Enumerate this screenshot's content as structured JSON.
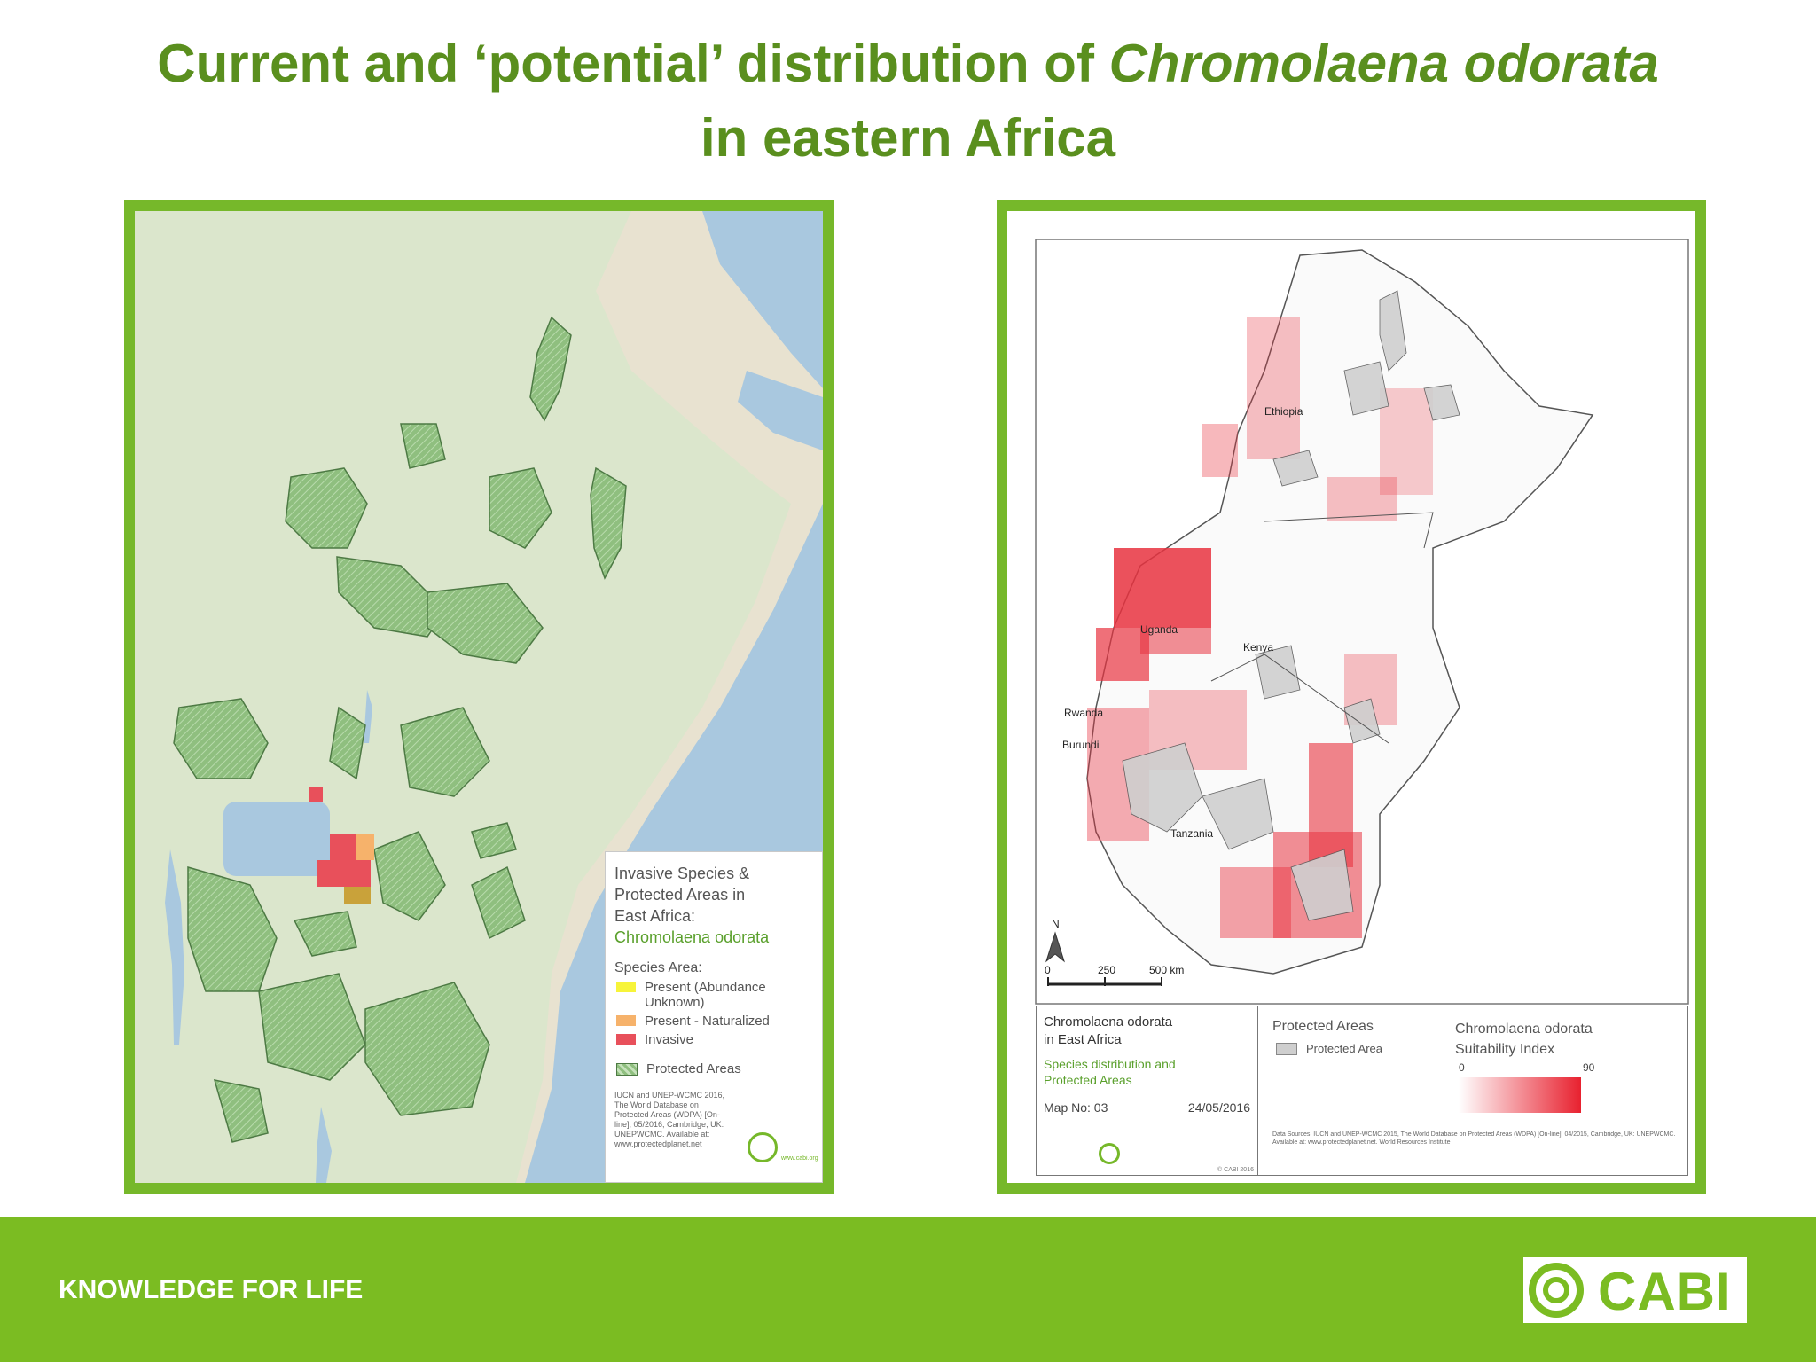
{
  "header": {
    "title_prefix": "Current and ‘potential’ distribution of ",
    "title_species": "Chromolaena odorata",
    "title_line2": "in eastern Africa"
  },
  "left_map": {
    "legend": {
      "title_line1": "Invasive Species &",
      "title_line2": "Protected Areas in",
      "title_line3": "East Africa:",
      "species": "Chromolaena odorata",
      "species_area": "Species Area:",
      "items": [
        {
          "label": "Present (Abundance Unknown)",
          "color": "#f7f43a"
        },
        {
          "label": "Present - Naturalized",
          "color": "#f6b26b"
        },
        {
          "label": "Invasive",
          "color": "#e8505b"
        }
      ],
      "protected_areas": "Protected Areas",
      "source": "IUCN and UNEP-WCMC 2016, The World Database on Protected Areas (WDPA) [On-line], 05/2016, Cambridge, UK: UNEPWCMC. Available at: www.protectedplanet.net",
      "logo_url_text": "www.cabi.org"
    }
  },
  "right_map": {
    "labels": {
      "ethiopia": "Ethiopia",
      "uganda": "Uganda",
      "kenya": "Kenya",
      "rwanda": "Rwanda",
      "burundi": "Burundi",
      "tanzania": "Tanzania",
      "north": "N"
    },
    "scale": {
      "zero": "0",
      "mid": "250",
      "end": "500 km"
    },
    "legend": {
      "title_line1": "Chromolaena odorata",
      "title_line2": "in East Africa",
      "subtitle_line1": "Species distribution and",
      "subtitle_line2": "Protected Areas",
      "map_no": "Map No: 03",
      "date": "24/05/2016",
      "copyright": "© CABI 2016",
      "pa_title": "Protected Areas",
      "pa_item": "Protected Area",
      "si_title_line1": "Chromolaena odorata",
      "si_title_line2": "Suitability Index",
      "si_min": "0",
      "si_max": "90",
      "sources": "Data Sources: IUCN and UNEP-WCMC 2015, The World Database on Protected Areas (WDPA) [On-line], 04/2015, Cambridge, UK: UNEPWCMC. Available at: www.protectedplanet.net. World Resources Institute"
    }
  },
  "footer": {
    "tagline": "KNOWLEDGE FOR LIFE",
    "logo_text": "CABI",
    "color": "#7bbc22"
  }
}
